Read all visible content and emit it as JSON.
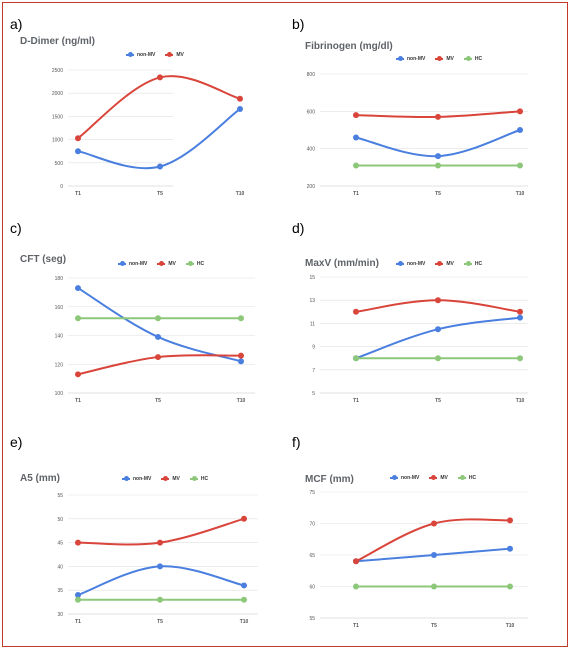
{
  "colors": {
    "non_mv": "#4a7fe0",
    "mv": "#d9453b",
    "hc": "#8cc77a",
    "grid": "#e0e0e0",
    "frame": "#c0392b"
  },
  "chart_data": [
    {
      "panel_label": "a)",
      "type": "line",
      "title": "D-Dimer (ng/ml)",
      "categories": [
        "T1",
        "T5",
        "T10"
      ],
      "ylim": [
        0,
        2500
      ],
      "yticks": [
        "0",
        "500",
        "1000",
        "1500",
        "2000",
        "2500"
      ],
      "legend_position": "top-center",
      "series": [
        {
          "name": "non-MV",
          "key": "non_mv",
          "values": [
            750,
            420,
            1660
          ]
        },
        {
          "name": "MV",
          "key": "mv",
          "values": [
            1030,
            2340,
            1880
          ]
        }
      ]
    },
    {
      "panel_label": "b)",
      "type": "line",
      "title": "Fibrinogen (mg/dl)",
      "categories": [
        "T1",
        "T5",
        "T10"
      ],
      "ylim": [
        200,
        800
      ],
      "yticks": [
        "200",
        "400",
        "600",
        "800"
      ],
      "legend_position": "top-center",
      "series": [
        {
          "name": "non-MV",
          "key": "non_mv",
          "values": [
            460,
            360,
            500
          ]
        },
        {
          "name": "MV",
          "key": "mv",
          "values": [
            580,
            570,
            600
          ]
        },
        {
          "name": "HC",
          "key": "hc",
          "values": [
            310,
            310,
            310
          ]
        }
      ]
    },
    {
      "panel_label": "c)",
      "type": "line",
      "title": "CFT (seg)",
      "categories": [
        "T1",
        "T5",
        "T10"
      ],
      "ylim": [
        100,
        180
      ],
      "yticks": [
        "100",
        "120",
        "140",
        "160",
        "180"
      ],
      "legend_position": "top-center",
      "series": [
        {
          "name": "non-MV",
          "key": "non_mv",
          "values": [
            173,
            139,
            122
          ]
        },
        {
          "name": "MV",
          "key": "mv",
          "values": [
            113,
            125,
            126
          ]
        },
        {
          "name": "HC",
          "key": "hc",
          "values": [
            152,
            152,
            152
          ]
        }
      ]
    },
    {
      "panel_label": "d)",
      "type": "line",
      "title": "MaxV (mm/min)",
      "categories": [
        "T1",
        "T5",
        "T10"
      ],
      "ylim": [
        5,
        15
      ],
      "yticks": [
        "5",
        "7",
        "9",
        "11",
        "13",
        "15"
      ],
      "legend_position": "top-center",
      "series": [
        {
          "name": "non-MV",
          "key": "non_mv",
          "values": [
            8,
            10.5,
            11.5
          ]
        },
        {
          "name": "MV",
          "key": "mv",
          "values": [
            12,
            13,
            12
          ]
        },
        {
          "name": "HC",
          "key": "hc",
          "values": [
            8,
            8,
            8
          ]
        }
      ]
    },
    {
      "panel_label": "e)",
      "type": "line",
      "title": "A5 (mm)",
      "categories": [
        "T1",
        "T5",
        "T10"
      ],
      "ylim": [
        30,
        55
      ],
      "yticks": [
        "30",
        "35",
        "40",
        "45",
        "50",
        "55"
      ],
      "legend_position": "top-center",
      "series": [
        {
          "name": "non-MV",
          "key": "non_mv",
          "values": [
            34,
            40,
            36
          ]
        },
        {
          "name": "MV",
          "key": "mv",
          "values": [
            45,
            45,
            50
          ]
        },
        {
          "name": "HC",
          "key": "hc",
          "values": [
            33,
            33,
            33
          ]
        }
      ]
    },
    {
      "panel_label": "f)",
      "type": "line",
      "title": "MCF (mm)",
      "categories": [
        "T1",
        "T5",
        "T10"
      ],
      "ylim": [
        55,
        75
      ],
      "yticks": [
        "55",
        "60",
        "65",
        "70",
        "75"
      ],
      "legend_position": "top-center",
      "series": [
        {
          "name": "non-MV",
          "key": "non_mv",
          "values": [
            64,
            65,
            66
          ]
        },
        {
          "name": "MV",
          "key": "mv",
          "values": [
            64,
            70,
            70.5
          ]
        },
        {
          "name": "HC",
          "key": "hc",
          "values": [
            60,
            60,
            60
          ]
        }
      ]
    }
  ]
}
